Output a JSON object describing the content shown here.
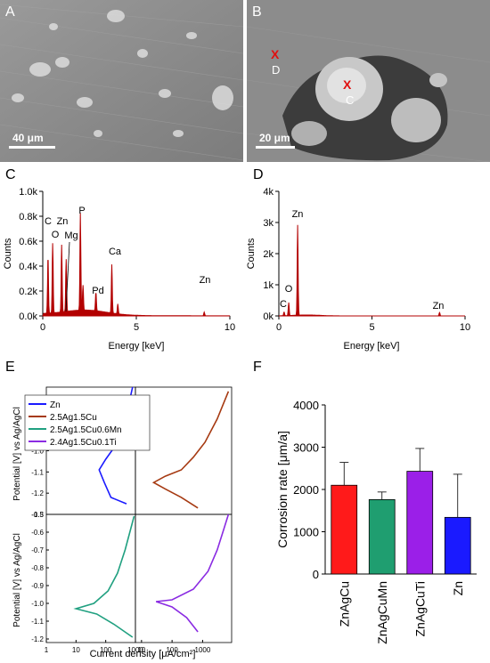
{
  "panels": {
    "A": {
      "letter": "A",
      "scale": "40 μm"
    },
    "B": {
      "letter": "B",
      "scale": "20 μm",
      "points": [
        "D",
        "C"
      ],
      "marker": "X"
    },
    "C": {
      "letter": "C"
    },
    "D": {
      "letter": "D"
    },
    "E": {
      "letter": "E"
    },
    "F": {
      "letter": "F"
    }
  },
  "chart_data": [
    {
      "id": "C",
      "type": "line",
      "xlabel": "Energy [keV]",
      "ylabel": "Counts",
      "xlim": [
        0,
        10
      ],
      "ylim": [
        0,
        1000
      ],
      "x_ticks": [
        "0",
        "5",
        "10"
      ],
      "y_ticks": [
        "0.0k",
        "0.2k",
        "0.4k",
        "0.6k",
        "0.8k",
        "1.0k"
      ],
      "peaks": [
        {
          "x": 0.28,
          "y": 460
        },
        {
          "x": 0.53,
          "y": 560
        },
        {
          "x": 1.01,
          "y": 540
        },
        {
          "x": 1.25,
          "y": 420
        },
        {
          "x": 2.01,
          "y": 780
        },
        {
          "x": 2.15,
          "y": 200
        },
        {
          "x": 2.84,
          "y": 150
        },
        {
          "x": 3.69,
          "y": 390
        },
        {
          "x": 4.01,
          "y": 80
        },
        {
          "x": 8.63,
          "y": 30
        }
      ],
      "annotations": [
        "C",
        "Zn",
        "O",
        "Mg",
        "P",
        "Ca",
        "Pd",
        "Zn"
      ],
      "color": "#b30000"
    },
    {
      "id": "D",
      "type": "line",
      "xlabel": "Energy [keV]",
      "ylabel": "Counts",
      "xlim": [
        0,
        10
      ],
      "ylim": [
        0,
        4000
      ],
      "x_ticks": [
        "0",
        "5",
        "10"
      ],
      "y_ticks": [
        "0k",
        "1k",
        "2k",
        "3k",
        "4k"
      ],
      "peaks": [
        {
          "x": 0.28,
          "y": 120
        },
        {
          "x": 0.53,
          "y": 420
        },
        {
          "x": 1.01,
          "y": 2900
        },
        {
          "x": 8.63,
          "y": 110
        }
      ],
      "annotations": [
        "C",
        "O",
        "Zn",
        "Zn"
      ],
      "color": "#b30000"
    },
    {
      "id": "E",
      "type": "line",
      "xlabel": "Current density [μA/cm²]",
      "ylabel": "Potential [V] vs Ag/AgCl",
      "x_ticks": [
        "1",
        "10",
        "100",
        "1000"
      ],
      "x_ticks_right": [
        "10",
        "100",
        "1000"
      ],
      "y_ticks_top": [
        "-0.8",
        "-0.9",
        "-1.0",
        "-1.1",
        "-1.2",
        "-1.3"
      ],
      "y_ticks_bottom": [
        "-0.5",
        "-0.6",
        "-0.7",
        "-0.8",
        "-0.9",
        "-1.0",
        "-1.1",
        "-1.2"
      ],
      "series": [
        {
          "name": "Zn",
          "color": "#1a1aff",
          "points": [
            [
              500,
              -1.25
            ],
            [
              150,
              -1.22
            ],
            [
              90,
              -1.15
            ],
            [
              60,
              -1.09
            ],
            [
              100,
              -1.04
            ],
            [
              180,
              -0.99
            ],
            [
              250,
              -0.93
            ],
            [
              400,
              -0.86
            ],
            [
              600,
              -0.78
            ],
            [
              800,
              -0.7
            ]
          ]
        },
        {
          "name": "2.5Ag1.5Cu",
          "color": "#a63a12",
          "points": [
            [
              700,
              -1.27
            ],
            [
              200,
              -1.22
            ],
            [
              60,
              -1.18
            ],
            [
              25,
              -1.15
            ],
            [
              60,
              -1.12
            ],
            [
              200,
              -1.09
            ],
            [
              500,
              -1.03
            ],
            [
              1200,
              -0.96
            ],
            [
              3000,
              -0.85
            ],
            [
              7000,
              -0.72
            ]
          ]
        },
        {
          "name": "2.5Ag1.5Cu0.6Mn",
          "color": "#20a080",
          "points": [
            [
              800,
              -1.19
            ],
            [
              200,
              -1.12
            ],
            [
              50,
              -1.06
            ],
            [
              10,
              -1.03
            ],
            [
              40,
              -1.0
            ],
            [
              120,
              -0.93
            ],
            [
              250,
              -0.83
            ],
            [
              450,
              -0.7
            ],
            [
              700,
              -0.58
            ],
            [
              900,
              -0.51
            ]
          ]
        },
        {
          "name": "2.4Ag1.5Cu0.1Ti",
          "color": "#8a2be2",
          "points": [
            [
              700,
              -1.16
            ],
            [
              300,
              -1.08
            ],
            [
              100,
              -1.02
            ],
            [
              30,
              -0.99
            ],
            [
              100,
              -0.98
            ],
            [
              500,
              -0.92
            ],
            [
              1500,
              -0.82
            ],
            [
              3000,
              -0.7
            ],
            [
              5000,
              -0.58
            ],
            [
              7000,
              -0.5
            ]
          ]
        }
      ]
    },
    {
      "id": "F",
      "type": "bar",
      "ylabel": "Corrosion rate [μm/a]",
      "ylim": [
        0,
        4000
      ],
      "y_ticks": [
        "0",
        "1000",
        "2000",
        "3000",
        "4000"
      ],
      "categories": [
        "ZnAgCu",
        "ZnAgCuMn",
        "ZnAgCuTi",
        "Zn"
      ],
      "values": [
        2100,
        1760,
        2430,
        1340
      ],
      "errors": [
        540,
        180,
        540,
        1020
      ],
      "colors": [
        "#ff1a1a",
        "#1f9e70",
        "#9b1fe8",
        "#1a1aff"
      ]
    }
  ]
}
